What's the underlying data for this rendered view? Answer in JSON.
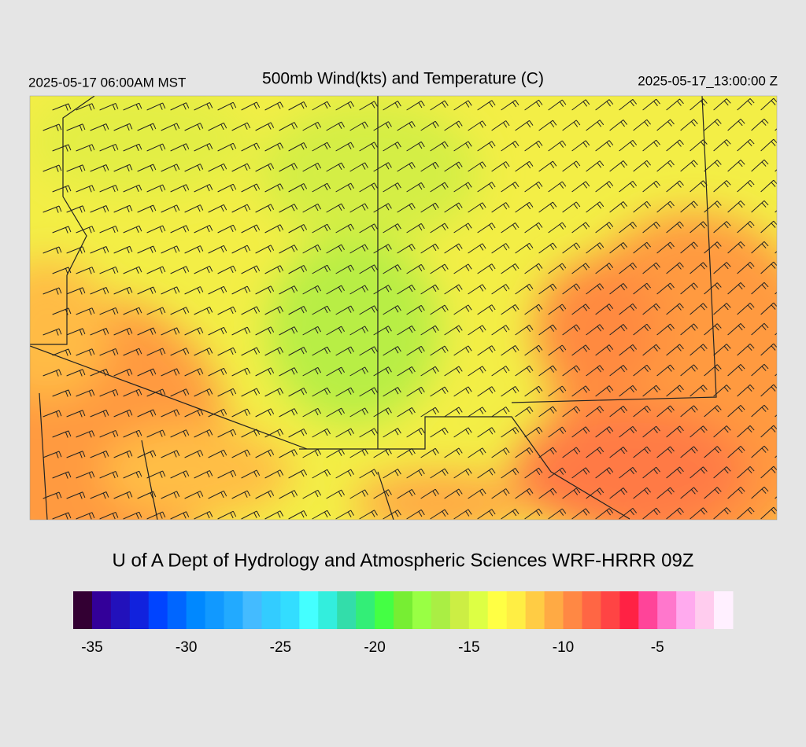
{
  "header": {
    "left": "2025-05-17 06:00AM MST",
    "title": "500mb Wind(kts) and Temperature (C)",
    "right": "2025-05-17_13:00:00 Z"
  },
  "footer": {
    "credit": "U of A Dept of Hydrology and Atmospheric Sciences WRF-HRRR 09Z"
  },
  "colorbar": {
    "lim": [
      -36,
      -1
    ],
    "colors": [
      "#330033",
      "#330099",
      "#2211bb",
      "#1122dd",
      "#0044ff",
      "#0066ff",
      "#0088ff",
      "#1199ff",
      "#22aaff",
      "#44bbff",
      "#33ccff",
      "#33ddff",
      "#44ffff",
      "#33eedd",
      "#33ddaa",
      "#33ee77",
      "#44ff44",
      "#77ee33",
      "#99ff44",
      "#aaee44",
      "#ccee44",
      "#ddff44",
      "#ffff44",
      "#ffee44",
      "#ffcc44",
      "#ffaa44",
      "#ff8844",
      "#ff6644",
      "#ff4444",
      "#ff2244",
      "#ff4499",
      "#ff77cc",
      "#ffaaee",
      "#ffccee",
      "#fff0ff"
    ],
    "ticks": [
      -35,
      -30,
      -25,
      -20,
      -15,
      -10,
      -5
    ]
  }
}
